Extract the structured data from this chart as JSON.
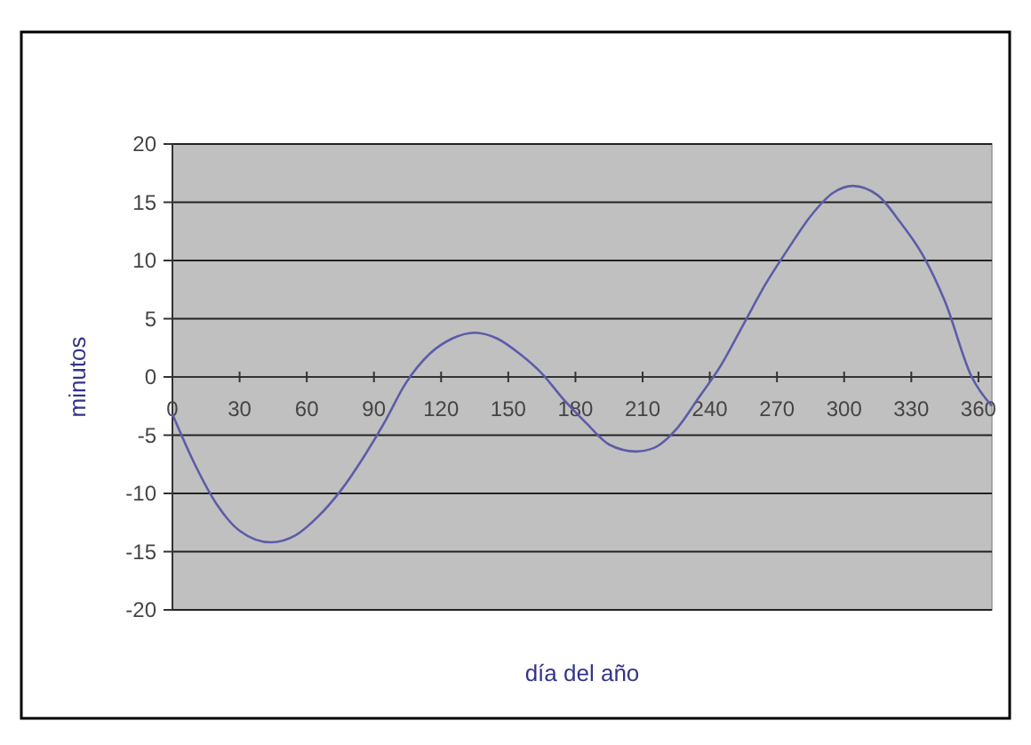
{
  "chart_data": {
    "type": "line",
    "xlabel": "día del año",
    "ylabel": "minutos",
    "xlim": [
      0,
      366
    ],
    "xticks": [
      0,
      30,
      60,
      90,
      120,
      150,
      180,
      210,
      240,
      270,
      300,
      330,
      360
    ],
    "ylim": [
      -20,
      20
    ],
    "yticks": [
      -20,
      -15,
      -10,
      -5,
      0,
      5,
      10,
      15,
      20
    ],
    "grid": "y",
    "marker": "none",
    "line_style": "solid",
    "series": [
      {
        "color": "#5c5ca8",
        "x": [
          0,
          10,
          20,
          30,
          44,
          55,
          65,
          75,
          85,
          95,
          104,
          115,
          125,
          135,
          145,
          155,
          165,
          175,
          185,
          195,
          207,
          215,
          225,
          235,
          245,
          255,
          265,
          275,
          285,
          295,
          304,
          315,
          325,
          335,
          345,
          357,
          366
        ],
        "values": [
          -3.2,
          -7.5,
          -11,
          -13.2,
          -14.2,
          -13.6,
          -12,
          -9.8,
          -7,
          -3.8,
          -0.6,
          2,
          3.3,
          3.8,
          3.3,
          2,
          0.3,
          -2,
          -4,
          -5.8,
          -6.4,
          -6.1,
          -4.5,
          -1.8,
          1,
          4.5,
          8,
          11,
          13.8,
          15.8,
          16.4,
          15.6,
          13.3,
          10.5,
          6.5,
          0,
          -2.5
        ]
      }
    ]
  }
}
